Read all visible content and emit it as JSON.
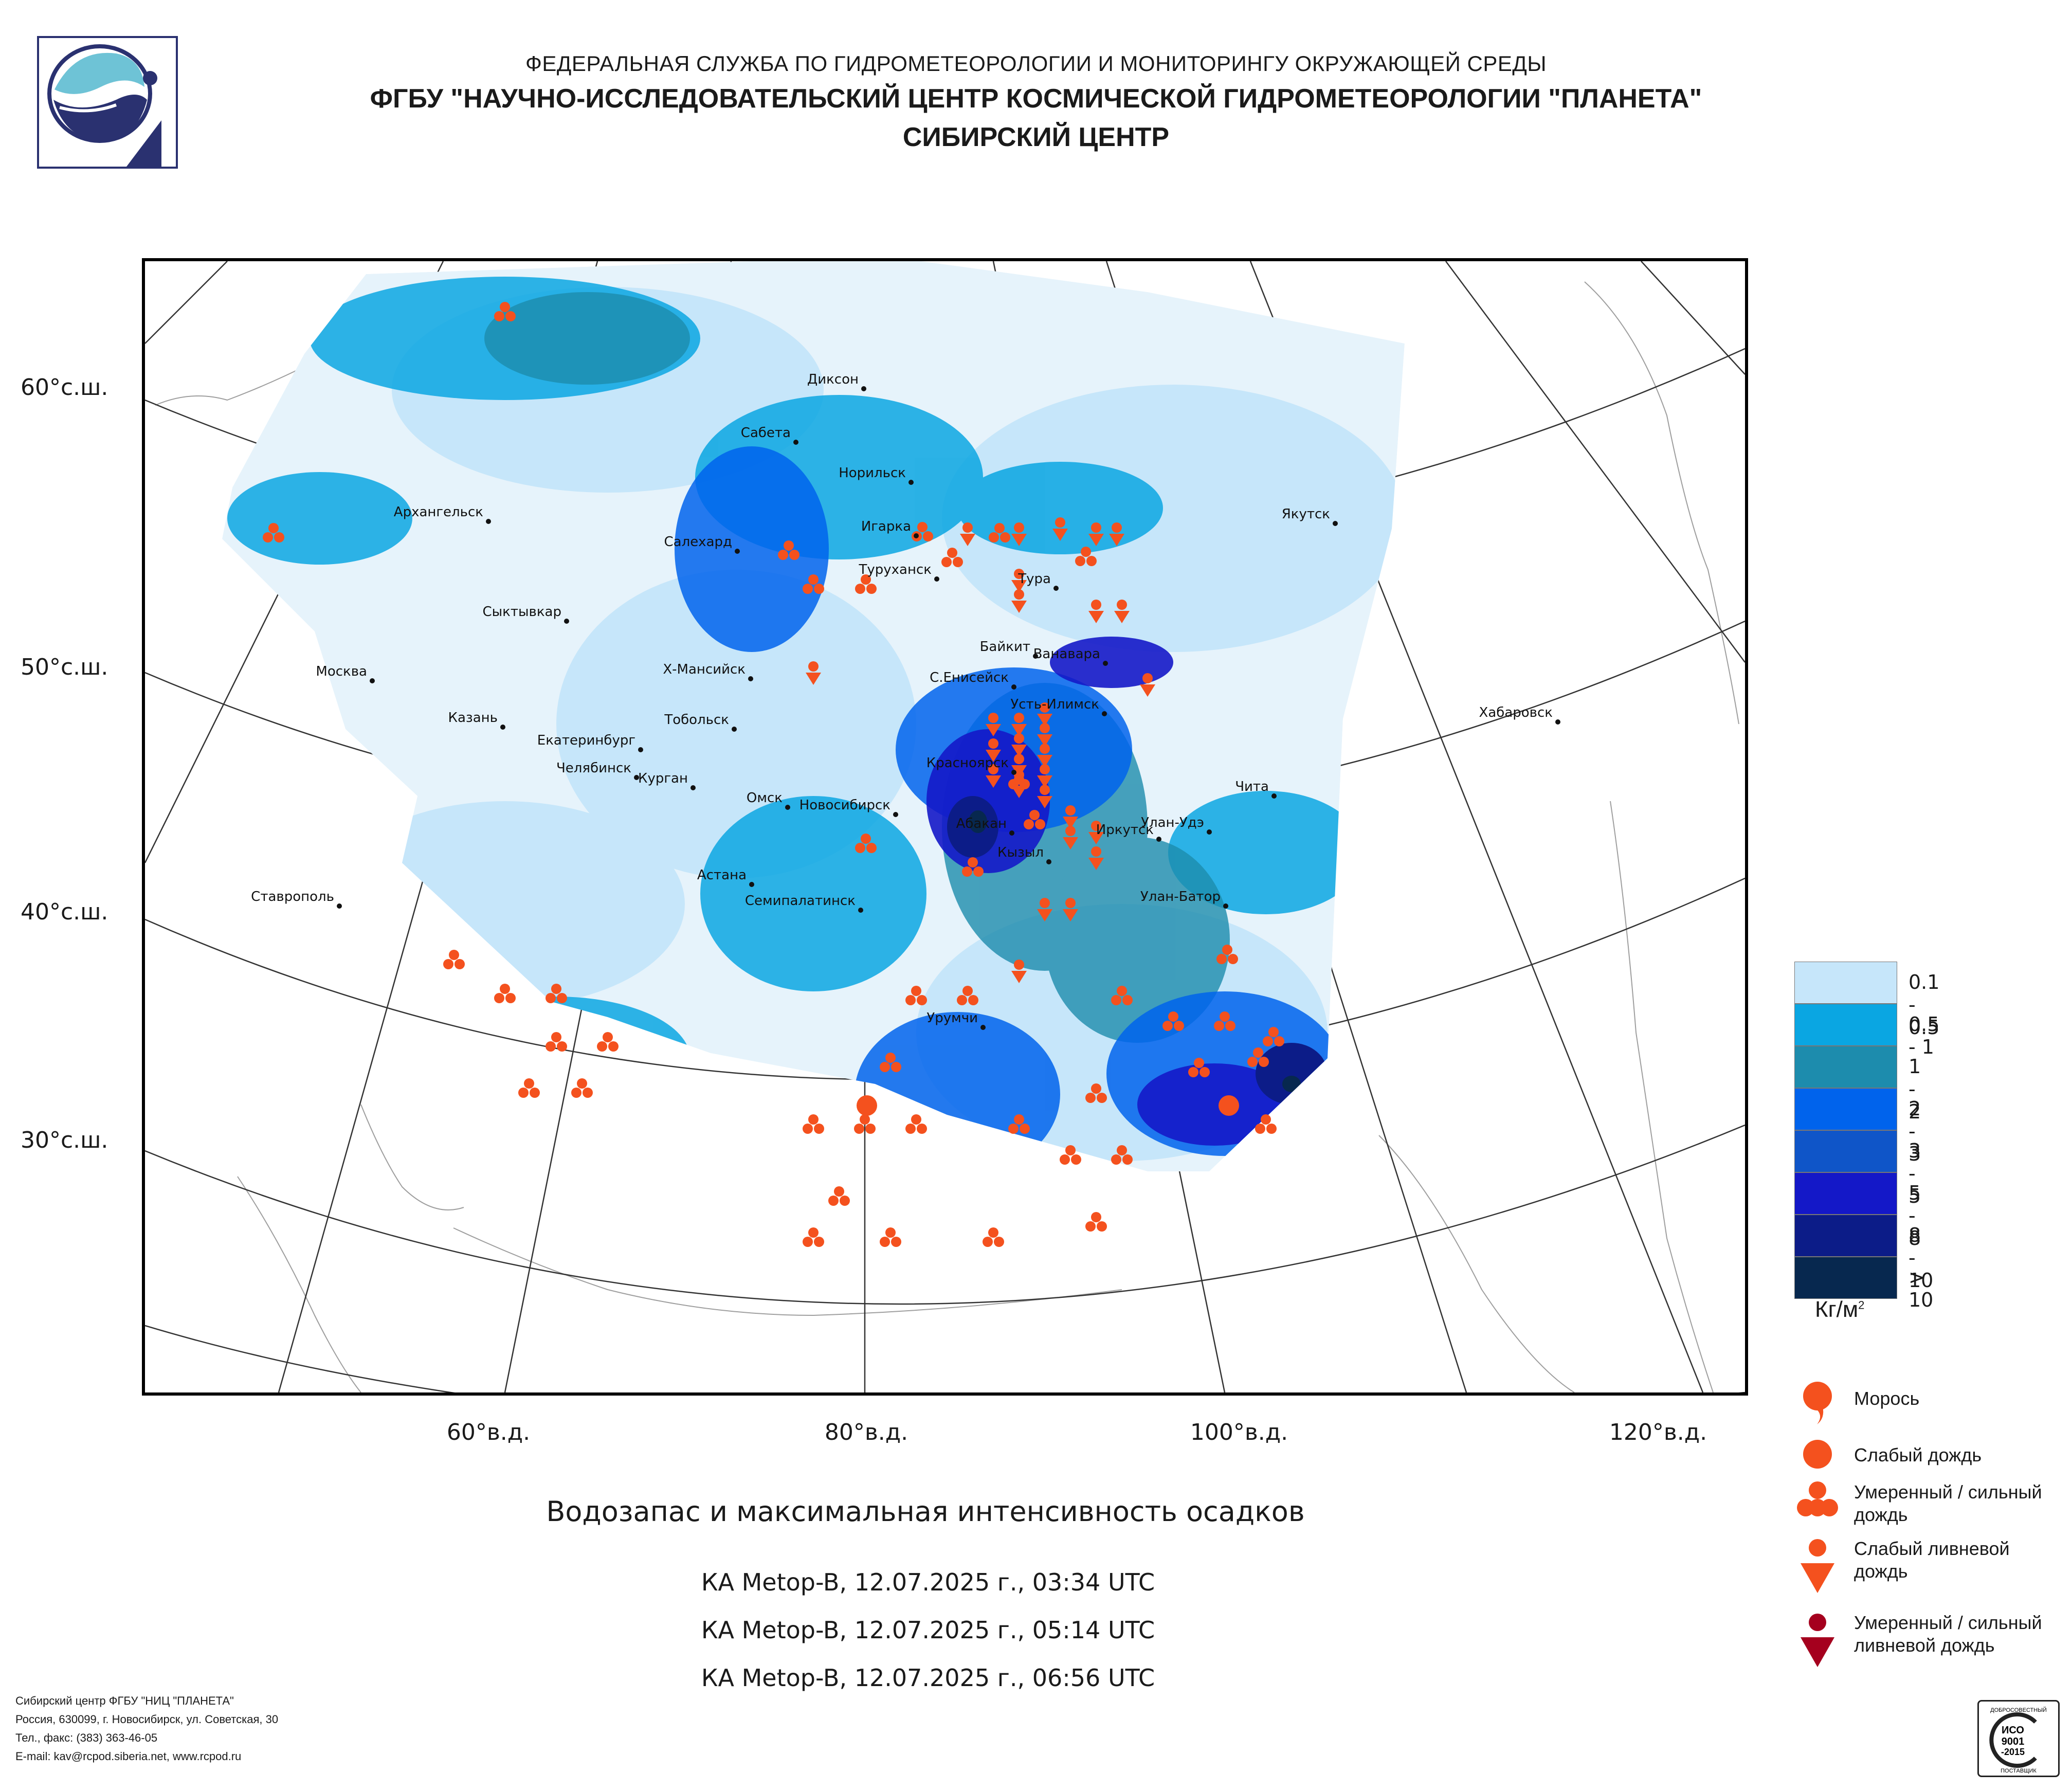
{
  "header": {
    "line1": "ФЕДЕРАЛЬНАЯ СЛУЖБА ПО ГИДРОМЕТЕОРОЛОГИИ И МОНИТОРИНГУ ОКРУЖАЮЩЕЙ СРЕДЫ",
    "line2": "ФГБУ \"НАУЧНО-ИССЛЕДОВАТЕЛЬСКИЙ ЦЕНТР КОСМИЧЕСКОЙ ГИДРОМЕТЕОРОЛОГИИ \"ПЛАНЕТА\"",
    "line3": "СИБИРСКИЙ ЦЕНТР"
  },
  "map": {
    "lat_labels": [
      "60°с.ш.",
      "50°с.ш.",
      "40°с.ш.",
      "30°с.ш."
    ],
    "lon_labels": [
      "60°в.д.",
      "80°в.д.",
      "100°в.д.",
      "120°в.д."
    ],
    "cities": [
      "Диксон",
      "Сабета",
      "Норильск",
      "Архангельск",
      "Игарка",
      "Салехард",
      "Туруханск",
      "Якутск",
      "Тура",
      "Сыктывкар",
      "Байкит",
      "Ванавара",
      "Москва",
      "Х-Мансийск",
      "С.Енисейск",
      "Усть-Илимск",
      "Хабаровск",
      "Казань",
      "Тобольск",
      "Екатеринбург",
      "Красноярск",
      "Челябинск",
      "Чита",
      "Курган",
      "Омск",
      "Новосибирск",
      "Абакан",
      "Улан-Удэ",
      "Иркутск",
      "Кызыл",
      "Астана",
      "Ставрополь",
      "Семипалатинск",
      "Улан-Батор",
      "Урумчи"
    ]
  },
  "legend": {
    "scale": [
      {
        "label": "0.1 - 0.5",
        "color": "#c6e6fa"
      },
      {
        "label": "0.5 - 1",
        "color": "#0aa6e2"
      },
      {
        "label": "1 - 2",
        "color": "#1d8cad"
      },
      {
        "label": "2 - 3",
        "color": "#0063ec"
      },
      {
        "label": "3 - 5",
        "color": "#0f55c8"
      },
      {
        "label": "5 - 8",
        "color": "#1418c8"
      },
      {
        "label": "8 - 10",
        "color": "#0c1c88"
      },
      {
        "label": "> 10",
        "color": "#07284f"
      }
    ],
    "unit_base": "Кг/м",
    "unit_sup": "2",
    "precip": {
      "drizzle": "Морось",
      "light_rain": "Слабый дождь",
      "moderate_rain_1": "Умеренный / сильный",
      "moderate_rain_2": "дождь",
      "light_shower_1": "Слабый ливневой",
      "light_shower_2": "дождь",
      "heavy_shower_1": "Умеренный / сильный",
      "heavy_shower_2": "ливневой дождь"
    },
    "colors": {
      "orange": "#f4511e",
      "dark_red": "#a5001e"
    }
  },
  "title": "Водозапас и максимальная интенсивность осадков",
  "passes": [
    "КА Metop-B, 12.07.2025 г., 03:34 UTC",
    "КА Metop-B, 12.07.2025 г., 05:14 UTC",
    "КА Metop-B, 12.07.2025 г., 06:56 UTC"
  ],
  "footer": {
    "line1": "Сибирский центр ФГБУ \"НИЦ \"ПЛАНЕТА\"",
    "line2": "Россия, 630099, г. Новосибирск, ул. Советская, 30",
    "line3": "Тел., факс: (383) 363-46-05",
    "line4": "E-mail: kav@rcpod.siberia.net, www.rcpod.ru"
  },
  "iso_badge": {
    "top": "ДОБРОСОВЕСТНЫЙ",
    "l1": "ИСО",
    "l2": "9001",
    "l3": "-2015",
    "bottom": "ПОСТАВЩИК"
  }
}
